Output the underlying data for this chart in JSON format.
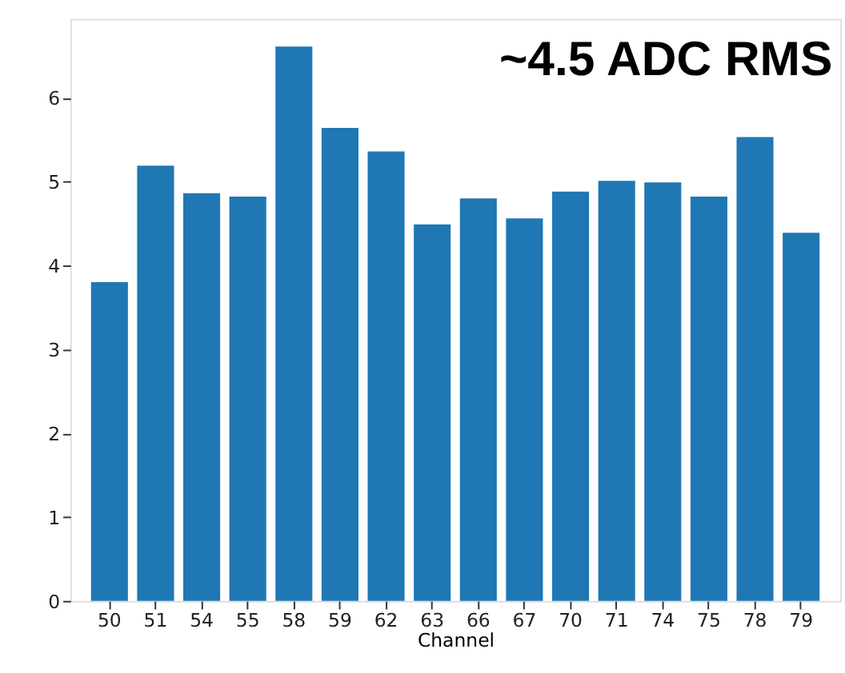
{
  "chart_data": {
    "type": "bar",
    "xlabel": "Channel",
    "categories": [
      "50",
      "51",
      "54",
      "55",
      "58",
      "59",
      "62",
      "63",
      "66",
      "67",
      "70",
      "71",
      "74",
      "75",
      "78",
      "79"
    ],
    "values": [
      3.8,
      5.19,
      4.86,
      4.82,
      6.61,
      5.64,
      5.36,
      4.49,
      4.8,
      4.56,
      4.88,
      5.01,
      4.99,
      4.82,
      5.53,
      4.39
    ],
    "color": "#1f77b4",
    "ylim": [
      0,
      6.94
    ],
    "yticks": [
      0,
      1,
      2,
      3,
      4,
      5,
      6
    ],
    "grid": false,
    "annotations": [
      "~4.5 ADC RMS"
    ]
  }
}
